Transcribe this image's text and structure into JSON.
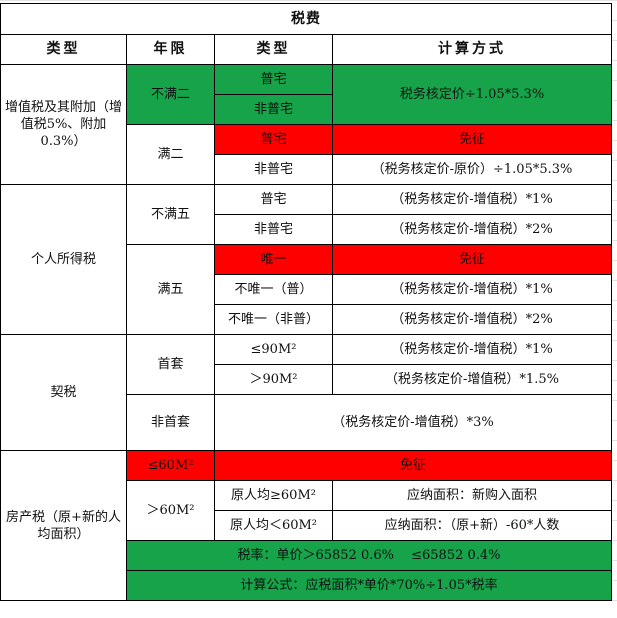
{
  "sheet": {
    "title": "税费",
    "headers": [
      "类型",
      "年限",
      "类型",
      "计算方式"
    ],
    "vat": {
      "category": "增值税及其附加（增值税5%、附加0.3%）",
      "lt2": "不满二",
      "lt2_ordinary": "普宅",
      "lt2_nonordinary": "非普宅",
      "lt2_formula": "税务核定价÷1.05*5.3%",
      "ge2": "满二",
      "ge2_ordinary": "普宅",
      "ge2_ordinary_formula": "免征",
      "ge2_nonordinary": "非普宅",
      "ge2_nonordinary_formula": "（税务核定价-原价）÷1.05*5.3%"
    },
    "pit": {
      "category": "个人所得税",
      "lt5": "不满五",
      "lt5_ordinary": "普宅",
      "lt5_ordinary_formula": "（税务核定价-增值税）*1%",
      "lt5_nonordinary": "非普宅",
      "lt5_nonordinary_formula": "（税务核定价-增值税）*2%",
      "ge5": "满五",
      "only": "唯一",
      "only_formula": "免征",
      "notonly_ordinary": "不唯一（普）",
      "notonly_ordinary_formula": "（税务核定价-增值税）*1%",
      "notonly_nonordinary": "不唯一（非普）",
      "notonly_nonordinary_formula": "（税务核定价-增值税）*2%"
    },
    "deed": {
      "category": "契税",
      "first": "首套",
      "small": "≤90M²",
      "small_formula": "（税务核定价-增值税）*1%",
      "large": "＞90M²",
      "large_formula": "（税务核定价-增值税）*1.5%",
      "nonfirst": "非首套",
      "nonfirst_formula": "（税务核定价-增值税）*3%"
    },
    "property": {
      "category": "房产税（原+新的人均面积）",
      "small": "≤60M²",
      "small_formula": "免征",
      "large": "＞60M²",
      "orig_ge": "原人均≥60M²",
      "orig_ge_formula": "应纳面积：新购入面积",
      "orig_lt": "原人均＜60M²",
      "orig_lt_formula": "应纳面积：（原+新）-60*人数",
      "rate": "税率：单价＞65852 0.6%　 ≤65852 0.4%",
      "formula": "计算公式：应税面积*单价*70%÷1.05*税率"
    }
  },
  "colors": {
    "green": "#16a34a",
    "red": "#ff0000"
  }
}
